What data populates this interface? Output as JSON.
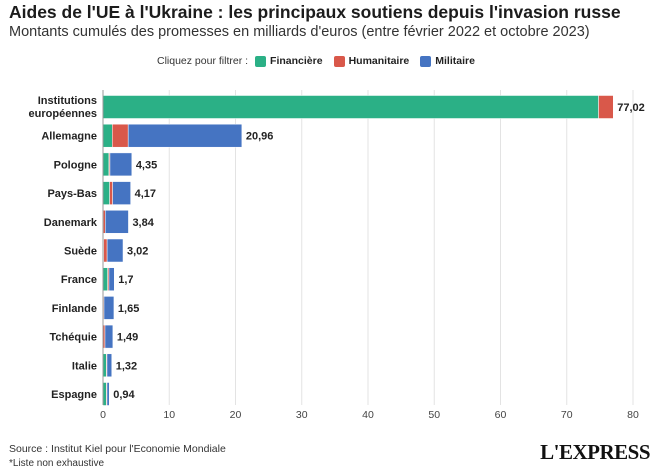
{
  "header": {
    "title": "Aides de l'UE à l'Ukraine : les principaux soutiens depuis l'invasion russe",
    "subtitle": "Montants cumulés des promesses en milliards d'euros (entre février 2022 et octobre 2023)"
  },
  "legend": {
    "prompt": "Cliquez pour filtrer :",
    "items": [
      {
        "name": "Financière",
        "color": "#2bb086"
      },
      {
        "name": "Humanitaire",
        "color": "#d9584a"
      },
      {
        "name": "Militaire",
        "color": "#4574c2"
      }
    ]
  },
  "chart_data": {
    "type": "bar",
    "orientation": "horizontal",
    "stacked": true,
    "categories": [
      "Institutions européennes",
      "Allemagne",
      "Pologne",
      "Pays-Bas",
      "Danemark",
      "Suède",
      "France",
      "Finlande",
      "Tchéquie",
      "Italie",
      "Espagne"
    ],
    "series": [
      {
        "name": "Financière",
        "color": "#2bb086",
        "values": [
          74.8,
          1.4,
          0.9,
          1.0,
          0.05,
          0.1,
          0.7,
          0.05,
          0.0,
          0.5,
          0.5
        ]
      },
      {
        "name": "Humanitaire",
        "color": "#d9584a",
        "values": [
          2.22,
          2.4,
          0.15,
          0.45,
          0.29,
          0.52,
          0.2,
          0.1,
          0.3,
          0.1,
          0.1
        ]
      },
      {
        "name": "Militaire",
        "color": "#4574c2",
        "values": [
          0.0,
          17.16,
          3.3,
          2.72,
          3.5,
          2.4,
          0.8,
          1.5,
          1.19,
          0.72,
          0.34
        ]
      }
    ],
    "totals": [
      "77,02",
      "20,96",
      "4,35",
      "4,17",
      "3,84",
      "3,02",
      "1,7",
      "1,65",
      "1,49",
      "1,32",
      "0,94"
    ],
    "xlim": [
      0,
      80
    ],
    "xticks": [
      0,
      10,
      20,
      30,
      40,
      50,
      60,
      70,
      80
    ],
    "grid": true,
    "legend_position": "top"
  },
  "footer": {
    "source": "Source : Institut Kiel pour l'Economie Mondiale",
    "note": "*Liste non exhaustive",
    "logo": "L'EXPRESS"
  }
}
